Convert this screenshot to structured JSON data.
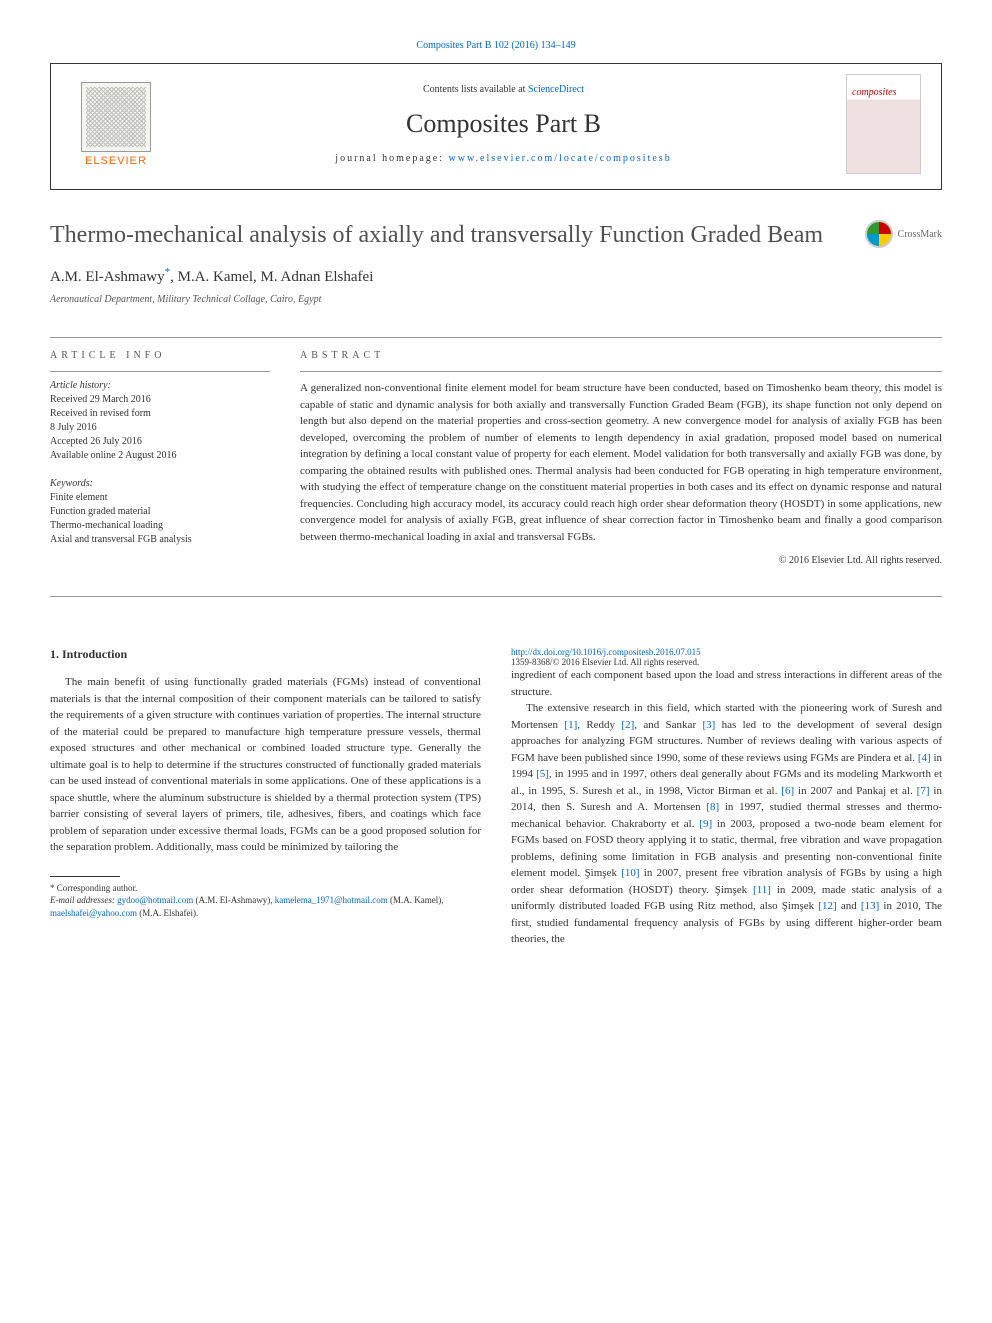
{
  "header": {
    "citation_link": "Composites Part B 102 (2016) 134–149",
    "contents_prefix": "Contents lists available at ",
    "contents_link": "ScienceDirect",
    "journal_name": "Composites Part B",
    "homepage_prefix": "journal homepage: ",
    "homepage_link": "www.elsevier.com/locate/compositesb",
    "publisher": "ELSEVIER",
    "cover_label": "composites"
  },
  "crossmark": {
    "label": "CrossMark"
  },
  "paper": {
    "title": "Thermo-mechanical analysis of axially and transversally Function Graded Beam",
    "authors": "A.M. El-Ashmawy",
    "author_mark": "*",
    "authors_rest": ", M.A. Kamel, M. Adnan Elshafei",
    "affiliation": "Aeronautical Department, Military Technical Collage, Cairo, Egypt"
  },
  "info": {
    "heading": "ARTICLE INFO",
    "history_label": "Article history:",
    "history": "Received 29 March 2016\nReceived in revised form\n8 July 2016\nAccepted 26 July 2016\nAvailable online 2 August 2016",
    "keywords_label": "Keywords:",
    "keywords": "Finite element\nFunction graded material\nThermo-mechanical loading\nAxial and transversal FGB analysis"
  },
  "abstract": {
    "heading": "ABSTRACT",
    "text": "A generalized non-conventional finite element model for beam structure have been conducted, based on Timoshenko beam theory, this model is capable of static and dynamic analysis for both axially and transversally Function Graded Beam (FGB), its shape function not only depend on length but also depend on the material properties and cross-section geometry. A new convergence model for analysis of axially FGB has been developed, overcoming the problem of number of elements to length dependency in axial gradation, proposed model based on numerical integration by defining a local constant value of property for each element. Model validation for both transversally and axially FGB was done, by comparing the obtained results with published ones. Thermal analysis had been conducted for FGB operating in high temperature environment, with studying the effect of temperature change on the constituent material properties in both cases and its effect on dynamic response and natural frequencies. Concluding high accuracy model, its accuracy could reach high order shear deformation theory (HOSDT) in some applications, new convergence model for analysis of axially FGB, great influence of shear correction factor in Timoshenko beam and finally a good comparison between thermo-mechanical loading in axial and transversal FGBs.",
    "copyright": "© 2016 Elsevier Ltd. All rights reserved."
  },
  "section1": {
    "heading": "1. Introduction",
    "p1": "The main benefit of using functionally graded materials (FGMs) instead of conventional materials is that the internal composition of their component materials can be tailored to satisfy the requirements of a given structure with continues variation of properties. The internal structure of the material could be prepared to manufacture high temperature pressure vessels, thermal exposed structures and other mechanical or combined loaded structure type. Generally the ultimate goal is to help to determine if the structures constructed of functionally graded materials can be used instead of conventional materials in some applications. One of these applications is a space shuttle, where the aluminum substructure is shielded by a thermal protection system (TPS) barrier consisting of several layers of primers, tile, adhesives, fibers, and coatings which face problem of separation under excessive thermal loads, FGMs can be a good proposed solution for the separation problem. Additionally, mass could be minimized by tailoring the",
    "p2_a": "ingredient of each component based upon the load and stress interactions in different areas of the structure.",
    "p2_b": "The extensive research in this field, which started with the pioneering work of Suresh and Mortensen ",
    "ref1": "[1]",
    "p2_c": ", Reddy ",
    "ref2": "[2]",
    "p2_d": ", and Sankar ",
    "ref3": "[3]",
    "p2_e": " has led to the development of several design approaches for analyzing FGM structures. Number of reviews dealing with various aspects of FGM have been published since 1990, some of these reviews using FGMs are Pindera et al. ",
    "ref4": "[4]",
    "p2_f": " in 1994 ",
    "ref5": "[5]",
    "p2_g": ", in 1995 and in 1997, others deal generally about FGMs and its modeling Markworth et al., in 1995, S. Suresh et al., in 1998, Victor Birman et al. ",
    "ref6": "[6]",
    "p2_h": " in 2007 and Pankaj et al. ",
    "ref7": "[7]",
    "p2_i": " in 2014, then S. Suresh and A. Mortensen ",
    "ref8": "[8]",
    "p2_j": " in 1997, studied thermal stresses and thermo-mechanical behavior. Chakraborty et al. ",
    "ref9": "[9]",
    "p2_k": " in 2003, proposed a two-node beam element for FGMs based on FOSD theory applying it to static, thermal, free vibration and wave propagation problems, defining some limitation in FGB analysis and presenting non-conventional finite element model. Şimşek ",
    "ref10": "[10]",
    "p2_l": " in 2007, present free vibration analysis of FGBs by using a high order shear deformation (HOSDT) theory. Şimşek ",
    "ref11": "[11]",
    "p2_m": " in 2009, made static analysis of a uniformly distributed loaded FGB using Ritz method, also Şimşek ",
    "ref12": "[12]",
    "p2_n": " and ",
    "ref13": "[13]",
    "p2_o": " in 2010, The first, studied fundamental frequency analysis of FGBs by using different higher-order beam theories, the"
  },
  "footnote": {
    "corr": "* Corresponding author.",
    "email_label": "E-mail addresses: ",
    "email1": "gydoo@hotmail.com",
    "email1_auth": " (A.M. El-Ashmawy), ",
    "email2": "kamelema_1971@hotmail.com",
    "email2_auth": " (M.A. Kamel), ",
    "email3": "maelshafei@yahoo.com",
    "email3_auth": " (M.A. Elshafei)."
  },
  "footer": {
    "doi": "http://dx.doi.org/10.1016/j.compositesb.2016.07.015",
    "issn": "1359-8368/© 2016 Elsevier Ltd. All rights reserved."
  }
}
